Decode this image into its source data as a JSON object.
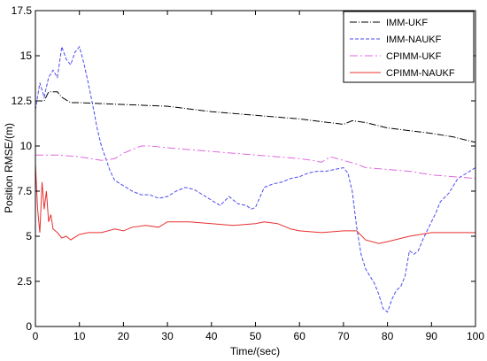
{
  "chart_data": {
    "type": "line",
    "xlabel": "Time/(sec)",
    "ylabel": "Position RMSE/(m)",
    "xlim": [
      0,
      100
    ],
    "ylim": [
      0,
      17.5
    ],
    "x_ticks": [
      "0",
      "10",
      "20",
      "30",
      "40",
      "50",
      "60",
      "70",
      "80",
      "90",
      "100"
    ],
    "y_ticks": [
      "0",
      "2.5",
      "5",
      "7.5",
      "10",
      "12.5",
      "15",
      "17.5"
    ],
    "grid": false,
    "legend_position": "top-right",
    "series": [
      {
        "name": "IMM-UKF",
        "color": "#000000",
        "dash": "8,2,1,2",
        "x": [
          0,
          2,
          3,
          5,
          6,
          8,
          10,
          15,
          20,
          30,
          40,
          50,
          60,
          65,
          70,
          72,
          75,
          80,
          90,
          95,
          100
        ],
        "y": [
          12.5,
          12.5,
          13.0,
          13.0,
          12.7,
          12.4,
          12.4,
          12.35,
          12.3,
          12.2,
          11.9,
          11.7,
          11.5,
          11.35,
          11.2,
          11.4,
          11.3,
          11.0,
          10.7,
          10.5,
          10.2
        ]
      },
      {
        "name": "IMM-NAUKF",
        "color": "#4a4af0",
        "dash": "4,2",
        "x": [
          0,
          1,
          2,
          3,
          4,
          5,
          6,
          7,
          8,
          9,
          10,
          11,
          12,
          13,
          14,
          15,
          16,
          17,
          18,
          20,
          22,
          24,
          26,
          28,
          30,
          32,
          34,
          36,
          38,
          40,
          42,
          44,
          46,
          48,
          49,
          50,
          52,
          54,
          56,
          58,
          60,
          62,
          64,
          66,
          68,
          70,
          71,
          72,
          73,
          74,
          75,
          76,
          77,
          78,
          79,
          80,
          81,
          82,
          83,
          84,
          85,
          86,
          87,
          88,
          89,
          90,
          91,
          92,
          94,
          96,
          98,
          100
        ],
        "y": [
          12.0,
          13.5,
          12.7,
          13.8,
          14.2,
          13.8,
          15.5,
          14.8,
          14.5,
          15.2,
          15.5,
          14.6,
          13.5,
          12.3,
          11.0,
          10.0,
          9.3,
          8.6,
          8.1,
          7.8,
          7.5,
          7.3,
          7.3,
          7.1,
          7.2,
          7.5,
          7.7,
          7.6,
          7.3,
          7.0,
          6.7,
          7.2,
          6.8,
          6.7,
          6.5,
          6.6,
          7.7,
          7.9,
          8.0,
          8.2,
          8.3,
          8.5,
          8.6,
          8.6,
          8.7,
          8.8,
          8.5,
          7.5,
          5.5,
          4.0,
          3.2,
          2.8,
          2.4,
          1.8,
          1.0,
          0.8,
          1.5,
          2.0,
          2.2,
          2.8,
          4.2,
          4.0,
          4.2,
          4.8,
          5.3,
          5.8,
          6.3,
          6.9,
          7.4,
          8.2,
          8.5,
          8.8
        ]
      },
      {
        "name": "CPIMM-UKF",
        "color": "#e066e0",
        "dash": "9,3,2,3",
        "x": [
          0,
          5,
          10,
          15,
          18,
          20,
          22,
          24,
          26,
          30,
          35,
          40,
          45,
          50,
          55,
          60,
          63,
          65,
          67,
          70,
          73,
          75,
          80,
          85,
          90,
          95,
          100
        ],
        "y": [
          9.5,
          9.5,
          9.4,
          9.2,
          9.3,
          9.6,
          9.8,
          10.0,
          10.0,
          9.9,
          9.8,
          9.7,
          9.6,
          9.5,
          9.4,
          9.3,
          9.2,
          9.1,
          9.4,
          9.2,
          9.0,
          8.8,
          8.7,
          8.6,
          8.4,
          8.3,
          8.2
        ]
      },
      {
        "name": "CPIMM-NAUKF",
        "color": "#e83030",
        "dash": "",
        "x": [
          0,
          0.5,
          1,
          1.5,
          2,
          2.5,
          3,
          3.5,
          4,
          5,
          6,
          7,
          8,
          10,
          12,
          15,
          18,
          20,
          22,
          25,
          28,
          30,
          35,
          40,
          45,
          50,
          52,
          55,
          58,
          60,
          65,
          70,
          73,
          75,
          78,
          80,
          85,
          90,
          95,
          100
        ],
        "y": [
          9.0,
          6.5,
          5.2,
          8.0,
          6.5,
          7.5,
          5.8,
          6.2,
          5.4,
          5.2,
          4.9,
          5.0,
          4.8,
          5.1,
          5.2,
          5.2,
          5.4,
          5.3,
          5.5,
          5.6,
          5.5,
          5.8,
          5.8,
          5.7,
          5.6,
          5.7,
          5.8,
          5.7,
          5.4,
          5.3,
          5.2,
          5.3,
          5.3,
          4.8,
          4.6,
          4.7,
          5.0,
          5.2,
          5.2,
          5.2
        ]
      }
    ]
  }
}
